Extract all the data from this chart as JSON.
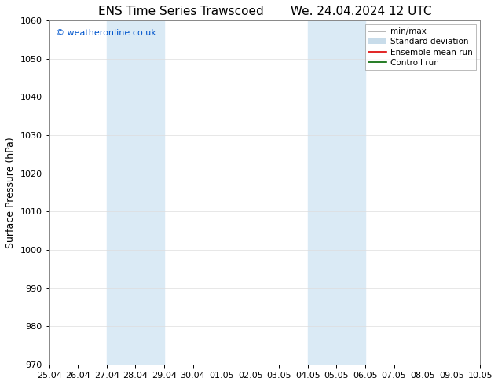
{
  "title_left": "ENS Time Series Trawscoed",
  "title_right": "We. 24.04.2024 12 UTC",
  "ylabel": "Surface Pressure (hPa)",
  "ylim": [
    970,
    1060
  ],
  "yticks": [
    970,
    980,
    990,
    1000,
    1010,
    1020,
    1030,
    1040,
    1050,
    1060
  ],
  "xtick_labels": [
    "25.04",
    "26.04",
    "27.04",
    "28.04",
    "29.04",
    "30.04",
    "01.05",
    "02.05",
    "03.05",
    "04.05",
    "05.05",
    "06.05",
    "07.05",
    "08.05",
    "09.05",
    "10.05"
  ],
  "watermark": "© weatheronline.co.uk",
  "watermark_color": "#0055cc",
  "shaded_bands": [
    {
      "xstart": 2,
      "xend": 4,
      "color": "#daeaf5"
    },
    {
      "xstart": 9,
      "xend": 11,
      "color": "#daeaf5"
    }
  ],
  "legend_entries": [
    {
      "label": "min/max",
      "color": "#aaaaaa",
      "lw": 1.2
    },
    {
      "label": "Standard deviation",
      "color": "#c8dcea",
      "lw": 5
    },
    {
      "label": "Ensemble mean run",
      "color": "#dd0000",
      "lw": 1.2
    },
    {
      "label": "Controll run",
      "color": "#006600",
      "lw": 1.2
    }
  ],
  "background_color": "#ffffff",
  "spine_color": "#888888",
  "title_fontsize": 11,
  "tick_fontsize": 8,
  "label_fontsize": 9,
  "legend_fontsize": 7.5
}
